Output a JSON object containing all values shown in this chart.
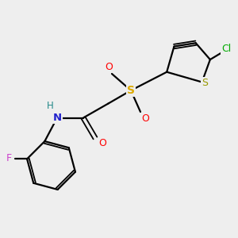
{
  "bg_color": "#eeeeee",
  "bond_color": "#000000",
  "atom_colors": {
    "S_thiophene": "#999900",
    "S_sulfonyl": "#ddaa00",
    "Cl": "#00aa00",
    "O": "#ff0000",
    "N": "#2222cc",
    "F": "#cc44cc",
    "H": "#228888",
    "C": "#000000"
  },
  "figsize": [
    3.0,
    3.0
  ],
  "dpi": 100
}
